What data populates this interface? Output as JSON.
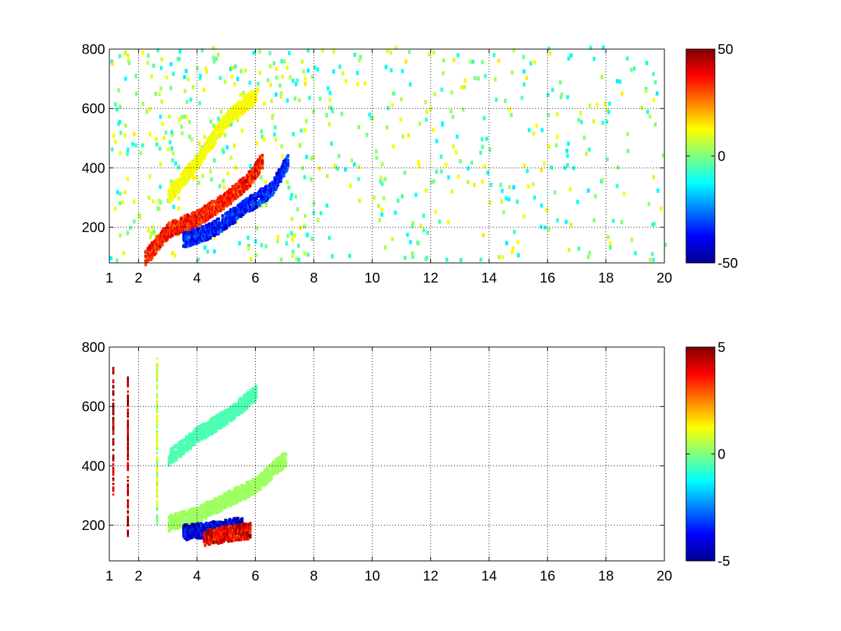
{
  "chart_data": [
    {
      "type": "heatmap",
      "title": "",
      "xlabel": "",
      "ylabel": "",
      "xlim": [
        1,
        20
      ],
      "ylim": [
        80,
        800
      ],
      "x_ticks": [
        1,
        2,
        4,
        6,
        8,
        10,
        12,
        14,
        16,
        18,
        20
      ],
      "x_tick_labels": [
        "1",
        "2",
        "4",
        "6",
        "8",
        "10",
        "12",
        "14",
        "16",
        "18",
        "20"
      ],
      "y_ticks": [
        200,
        400,
        600,
        800
      ],
      "y_tick_labels": [
        "200",
        "400",
        "600",
        "800"
      ],
      "grid": true,
      "grid_style": "dotted",
      "colormap": "jet",
      "clim": [
        -50,
        50
      ],
      "colorbar_ticks": [
        50,
        0,
        -50
      ],
      "colorbar_tick_labels": [
        "50",
        "0",
        "-50"
      ],
      "features": [
        {
          "description": "positive band",
          "points": [
            [
              2.2,
              90
            ],
            [
              3,
              185
            ],
            [
              4,
              225
            ],
            [
              5,
              290
            ],
            [
              5.8,
              360
            ],
            [
              6.2,
              420
            ]
          ],
          "value": 35
        },
        {
          "description": "negative band",
          "points": [
            [
              3.5,
              150
            ],
            [
              4.5,
              185
            ],
            [
              5.5,
              255
            ],
            [
              6.5,
              320
            ],
            [
              7.1,
              420
            ]
          ],
          "value": -35
        },
        {
          "description": "weak positive plume",
          "points": [
            [
              3,
              300
            ],
            [
              4,
              420
            ],
            [
              5,
              560
            ],
            [
              6,
              640
            ]
          ],
          "value": 12
        }
      ],
      "scattered_region": {
        "x_range": [
          1,
          20
        ],
        "y_range": [
          80,
          800
        ],
        "value_range": [
          -15,
          15
        ]
      }
    },
    {
      "type": "heatmap",
      "title": "",
      "xlabel": "",
      "ylabel": "",
      "xlim": [
        1,
        20
      ],
      "ylim": [
        80,
        800
      ],
      "x_ticks": [
        1,
        2,
        4,
        6,
        8,
        10,
        12,
        14,
        16,
        18,
        20
      ],
      "x_tick_labels": [
        "1",
        "2",
        "4",
        "6",
        "8",
        "10",
        "12",
        "14",
        "16",
        "18",
        "20"
      ],
      "y_ticks": [
        200,
        400,
        600,
        800
      ],
      "y_tick_labels": [
        "200",
        "400",
        "600",
        "800"
      ],
      "grid": true,
      "grid_style": "dotted",
      "colormap": "jet",
      "clim": [
        -5,
        5
      ],
      "colorbar_ticks": [
        5,
        0,
        -5
      ],
      "colorbar_tick_labels": [
        "5",
        "0",
        "-5"
      ],
      "features": [
        {
          "description": "main band",
          "points": [
            [
              3,
              200
            ],
            [
              4,
              230
            ],
            [
              5,
              280
            ],
            [
              6,
              330
            ],
            [
              7,
              420
            ]
          ],
          "value": 0.3
        },
        {
          "description": "upper arc",
          "points": [
            [
              3,
              420
            ],
            [
              4,
              500
            ],
            [
              5,
              560
            ],
            [
              6,
              640
            ]
          ],
          "value": -0.5
        },
        {
          "description": "lower negative edge",
          "points": [
            [
              3.5,
              170
            ],
            [
              4.5,
              180
            ],
            [
              5.5,
              195
            ]
          ],
          "value": -4
        },
        {
          "description": "lower positive edge",
          "points": [
            [
              4.2,
              150
            ],
            [
              5,
              165
            ],
            [
              5.8,
              175
            ]
          ],
          "value": 4
        }
      ],
      "vertical_streaks": [
        {
          "x": 1.1,
          "y_range": [
            300,
            730
          ],
          "value": 4.5
        },
        {
          "x": 1.6,
          "y_range": [
            160,
            730
          ],
          "value": 4.5
        },
        {
          "x": 2.6,
          "y_range": [
            200,
            760
          ],
          "value": 0.5
        }
      ]
    }
  ]
}
